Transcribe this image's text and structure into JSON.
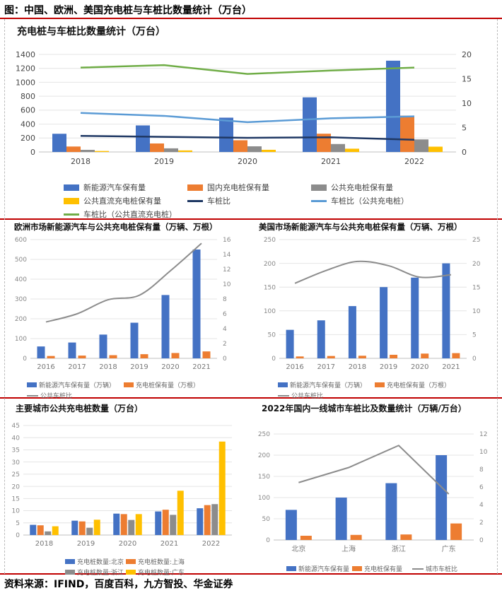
{
  "header": {
    "title": "图：中国、欧洲、美国充电桩与车桩比数量统计（万台）"
  },
  "source": "资料来源：IFIND，百度百科，九方智投、华金证券",
  "chart_data": [
    {
      "id": "china",
      "type": "bar",
      "title": "充电桩与车桩比数量统计（万台）",
      "categories": [
        "2018",
        "2019",
        "2020",
        "2021",
        "2022"
      ],
      "ylim": [
        0,
        1400
      ],
      "yticks": [
        0,
        200,
        400,
        600,
        800,
        1000,
        1200,
        1400
      ],
      "y2lim": [
        0,
        20
      ],
      "y2ticks": [
        0,
        5,
        10,
        15,
        20
      ],
      "series": [
        {
          "name": "新能源汽车保有量",
          "type": "bar",
          "axis": "left",
          "color": "#4472c4",
          "values": [
            261,
            381,
            492,
            784,
            1310
          ]
        },
        {
          "name": "国内充电桩保有量",
          "type": "bar",
          "axis": "left",
          "color": "#ed7d31",
          "values": [
            78,
            122,
            168,
            262,
            521
          ]
        },
        {
          "name": "公共充电桩保有量",
          "type": "bar",
          "axis": "left",
          "color": "#8c8c8c",
          "values": [
            30,
            52,
            81,
            114,
            180
          ]
        },
        {
          "name": "公共直流充电桩保有量",
          "type": "bar",
          "axis": "left",
          "color": "#ffc000",
          "values": [
            14,
            22,
            31,
            47,
            76
          ]
        },
        {
          "name": "车桩比",
          "type": "line",
          "axis": "right",
          "color": "#1f3864",
          "values": [
            3.3,
            3.1,
            2.9,
            3.0,
            2.5
          ]
        },
        {
          "name": "车桩比（公共充电桩）",
          "type": "line",
          "axis": "right",
          "color": "#5b9bd5",
          "values": [
            8.0,
            7.4,
            6.1,
            6.9,
            7.3
          ]
        },
        {
          "name": "车桩比（公共直流充电桩）",
          "type": "line",
          "axis": "right",
          "color": "#70ad47",
          "values": [
            17.3,
            17.8,
            16.0,
            16.7,
            17.3
          ]
        }
      ]
    },
    {
      "id": "europe",
      "type": "bar",
      "title": "欧洲市场新能源汽车与公共充电桩保有量（万辆、万根）",
      "categories": [
        "2016",
        "2017",
        "2018",
        "2019",
        "2020",
        "2021"
      ],
      "ylim": [
        0,
        600
      ],
      "yticks": [
        0,
        100,
        200,
        300,
        400,
        500,
        600
      ],
      "y2lim": [
        0,
        16
      ],
      "y2ticks": [
        0,
        2,
        4,
        6,
        8,
        10,
        12,
        14,
        16
      ],
      "series": [
        {
          "name": "新能源汽车保有量（万辆）",
          "type": "bar",
          "axis": "left",
          "color": "#4472c4",
          "values": [
            60,
            80,
            120,
            180,
            320,
            550
          ]
        },
        {
          "name": "充电桩保有量（万根）",
          "type": "bar",
          "axis": "left",
          "color": "#ed7d31",
          "values": [
            12,
            14,
            16,
            21,
            27,
            35
          ]
        },
        {
          "name": "公共车桩比",
          "type": "line",
          "smooth": true,
          "axis": "right",
          "color": "#8c8c8c",
          "values": [
            4.9,
            6.0,
            7.9,
            8.5,
            11.8,
            15.5
          ]
        }
      ]
    },
    {
      "id": "usa",
      "type": "bar",
      "title": "美国市场新能源汽车与公共充电桩保有量（万辆、万根）",
      "categories": [
        "2016",
        "2017",
        "2018",
        "2019",
        "2020",
        "2021"
      ],
      "ylim": [
        0,
        250
      ],
      "yticks": [
        0,
        50,
        100,
        150,
        200,
        250
      ],
      "y2lim": [
        0,
        25
      ],
      "y2ticks": [
        0,
        5,
        10,
        15,
        20,
        25
      ],
      "series": [
        {
          "name": "新能源汽车保有量（万辆）",
          "type": "bar",
          "axis": "left",
          "color": "#4472c4",
          "values": [
            60,
            80,
            110,
            150,
            170,
            200
          ]
        },
        {
          "name": "充电桩保有量（万根）",
          "type": "bar",
          "axis": "left",
          "color": "#ed7d31",
          "values": [
            4,
            5,
            5.5,
            7.5,
            10,
            11
          ]
        },
        {
          "name": "公共车桩比",
          "type": "line",
          "smooth": true,
          "axis": "right",
          "color": "#8c8c8c",
          "values": [
            15.8,
            18.5,
            20.4,
            19.5,
            17.1,
            17.6
          ]
        }
      ]
    },
    {
      "id": "cities",
      "type": "bar",
      "title": "主要城市公共充电桩数量（万台）",
      "categories": [
        "2018",
        "2019",
        "2020",
        "2021",
        "2022"
      ],
      "ylim": [
        0,
        45
      ],
      "yticks": [
        0,
        5,
        10,
        15,
        20,
        25,
        30,
        35,
        40,
        45
      ],
      "series": [
        {
          "name": "充电桩数量:北京",
          "type": "bar",
          "axis": "left",
          "color": "#4472c4",
          "values": [
            4.2,
            5.9,
            8.8,
            9.7,
            11.0
          ]
        },
        {
          "name": "充电桩数量:上海",
          "type": "bar",
          "axis": "left",
          "color": "#ed7d31",
          "values": [
            4.0,
            5.6,
            8.6,
            10.4,
            12.3
          ]
        },
        {
          "name": "充电桩数量:浙江",
          "type": "bar",
          "axis": "left",
          "color": "#8c8c8c",
          "values": [
            1.5,
            3.0,
            6.2,
            8.3,
            12.7
          ]
        },
        {
          "name": "充电桩数量:广东",
          "type": "bar",
          "axis": "left",
          "color": "#ffc000",
          "values": [
            3.6,
            6.3,
            8.6,
            18.2,
            38.4
          ]
        }
      ]
    },
    {
      "id": "tier1",
      "type": "bar",
      "title": "2022年国内一线城市车桩比及数量统计（万辆/万台）",
      "categories": [
        "北京",
        "上海",
        "浙江",
        "广东"
      ],
      "ylim": [
        0,
        250
      ],
      "yticks": [
        0,
        50,
        100,
        150,
        200,
        250
      ],
      "y2lim": [
        0,
        12
      ],
      "y2ticks": [
        0,
        2,
        4,
        6,
        8,
        10,
        12
      ],
      "series": [
        {
          "name": "新能源汽车保有量",
          "type": "bar",
          "axis": "left",
          "color": "#4472c4",
          "values": [
            71,
            100,
            134,
            200
          ]
        },
        {
          "name": "充电桩保有量",
          "type": "bar",
          "axis": "left",
          "color": "#ed7d31",
          "values": [
            10,
            12,
            13,
            39
          ]
        },
        {
          "name": "城市车桩比",
          "type": "line",
          "axis": "right",
          "color": "#8c8c8c",
          "values": [
            6.5,
            8.2,
            10.7,
            5.2
          ]
        }
      ]
    }
  ]
}
